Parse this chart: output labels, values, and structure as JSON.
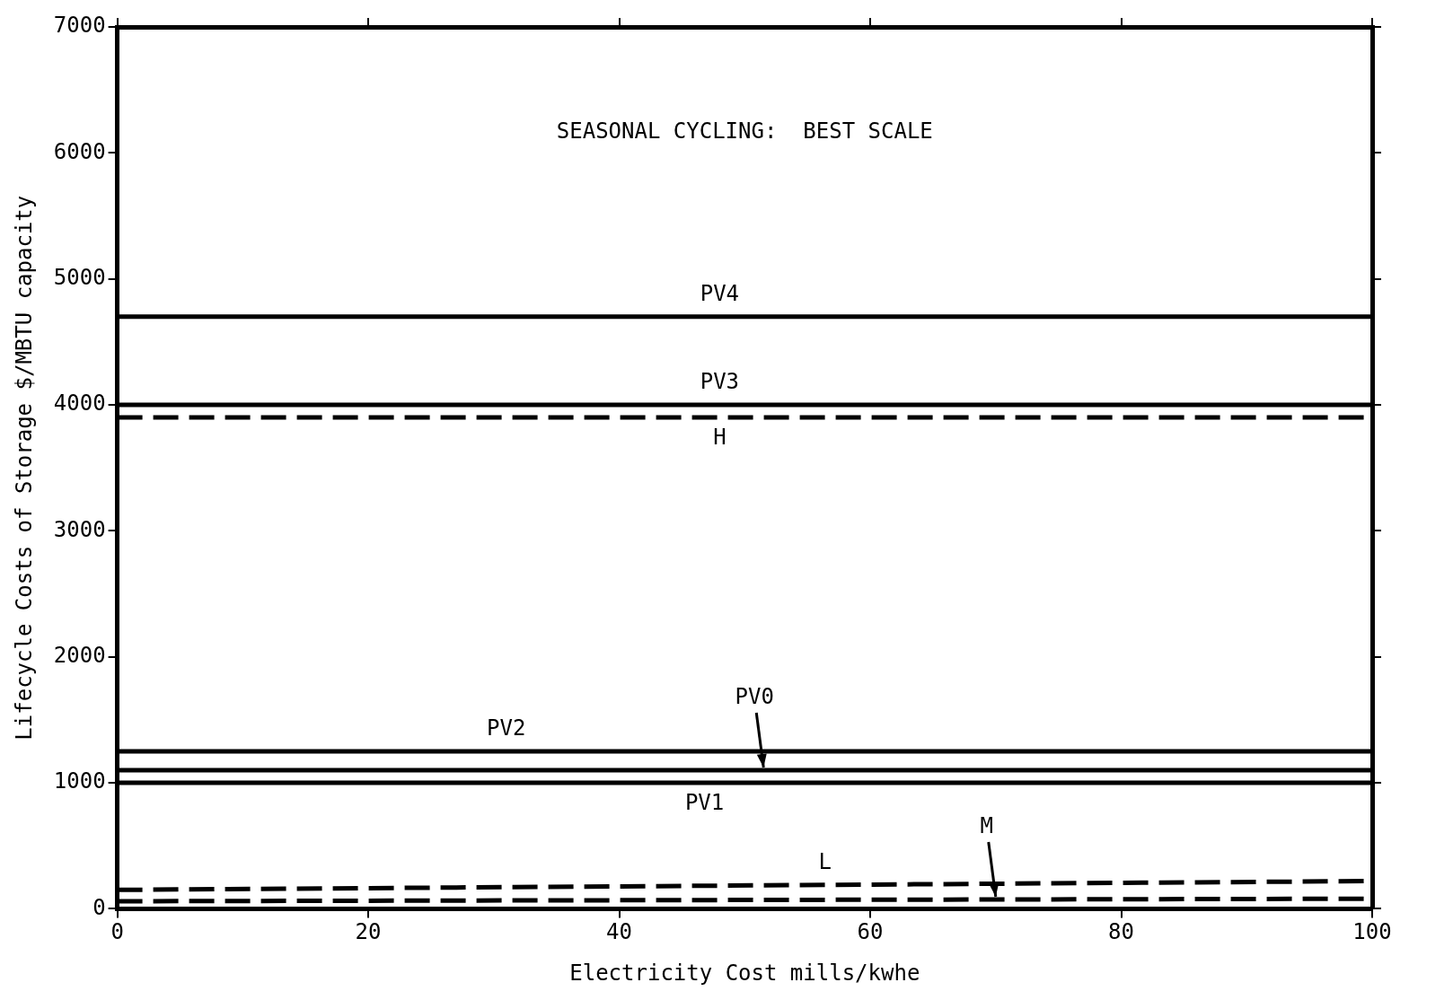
{
  "chart_data": {
    "type": "line",
    "title": "SEASONAL CYCLING:  BEST SCALE",
    "xlabel": "Electricity Cost mills/kwhe",
    "ylabel": "Lifecycle Costs of Storage $/MBTU capacity",
    "x": [
      0,
      100
    ],
    "xlim": [
      0,
      100
    ],
    "xticks": [
      0,
      20,
      40,
      60,
      80,
      100
    ],
    "ylim": [
      0,
      7000
    ],
    "yticks": [
      0,
      1000,
      2000,
      3000,
      4000,
      5000,
      6000,
      7000
    ],
    "grid": false,
    "legend": false,
    "marker": "none",
    "series": [
      {
        "color": "#000000",
        "line_style": "solid",
        "values": [
          4700,
          4700
        ]
      },
      {
        "color": "#000000",
        "line_style": "solid",
        "values": [
          4000,
          4000
        ]
      },
      {
        "color": "#000000",
        "line_style": "dashed",
        "values": [
          3900,
          3900
        ]
      },
      {
        "color": "#000000",
        "line_style": "solid",
        "values": [
          1250,
          1250
        ]
      },
      {
        "color": "#000000",
        "line_style": "solid",
        "values": [
          1100,
          1100
        ]
      },
      {
        "color": "#000000",
        "line_style": "solid",
        "values": [
          1000,
          1000
        ]
      },
      {
        "color": "#000000",
        "line_style": "dashed",
        "values": [
          150,
          220
        ]
      },
      {
        "color": "#000000",
        "line_style": "dashed",
        "values": [
          60,
          80
        ]
      }
    ],
    "annotations": [
      {
        "text": "PV4",
        "x": 48,
        "y": 4700
      },
      {
        "text": "PV3",
        "x": 48,
        "y": 4000
      },
      {
        "text": "H",
        "x": 48,
        "y": 3900
      },
      {
        "text": "PV2",
        "x": 31,
        "y": 1250
      },
      {
        "text": "PV0",
        "x": 51.5,
        "y": 1100
      },
      {
        "text": "PV1",
        "x": 46.8,
        "y": 1000
      },
      {
        "text": "L",
        "x": 56.4,
        "y": 190
      },
      {
        "text": "M",
        "x": 70,
        "y": 74
      }
    ]
  }
}
